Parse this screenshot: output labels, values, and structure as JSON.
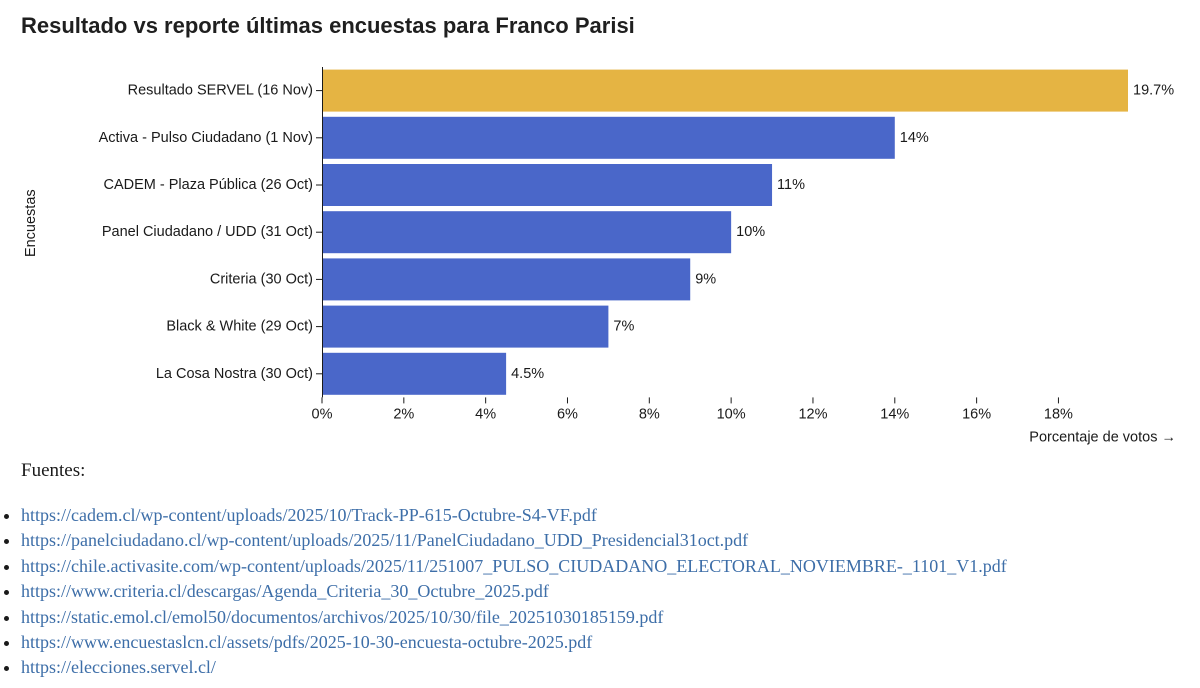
{
  "title": "Resultado vs reporte últimas encuestas para Franco Parisi",
  "chart_data": {
    "type": "bar",
    "orientation": "horizontal",
    "categories": [
      "Resultado SERVEL (16 Nov)",
      "Activa - Pulso Ciudadano (1 Nov)",
      "CADEM - Plaza Pública (26 Oct)",
      "Panel Ciudadano / UDD (31 Oct)",
      "Criteria (30 Oct)",
      "Black & White (29 Oct)",
      "La Cosa Nostra (30 Oct)"
    ],
    "values": [
      19.7,
      14,
      11,
      10,
      9,
      7,
      4.5
    ],
    "value_labels": [
      "19.7%",
      "14%",
      "11%",
      "10%",
      "9%",
      "7%",
      "4.5%"
    ],
    "bar_colors": [
      "#e5b443",
      "#4a67c9",
      "#4a67c9",
      "#4a67c9",
      "#4a67c9",
      "#4a67c9",
      "#4a67c9"
    ],
    "xlabel": "Porcentaje de votos →",
    "ylabel": "Encuestas",
    "xlim": [
      0,
      19.7
    ],
    "xticks": [
      0,
      2,
      4,
      6,
      8,
      10,
      12,
      14,
      16,
      18
    ],
    "xtick_labels": [
      "0%",
      "2%",
      "4%",
      "6%",
      "8%",
      "10%",
      "12%",
      "14%",
      "16%",
      "18%"
    ],
    "grid": false,
    "legend": "none"
  },
  "sources": {
    "heading": "Fuentes:",
    "links": [
      "https://cadem.cl/wp-content/uploads/2025/10/Track-PP-615-Octubre-S4-VF.pdf",
      "https://panelciudadano.cl/wp-content/uploads/2025/11/PanelCiudadano_UDD_Presidencial31oct.pdf",
      "https://chile.activasite.com/wp-content/uploads/2025/11/251007_PULSO_CIUDADANO_ELECTORAL_NOVIEMBRE-_1101_V1.pdf",
      "https://www.criteria.cl/descargas/Agenda_Criteria_30_Octubre_2025.pdf",
      "https://static.emol.cl/emol50/documentos/archivos/2025/10/30/file_20251030185159.pdf",
      "https://www.encuestaslcn.cl/assets/pdfs/2025-10-30-encuesta-octubre-2025.pdf",
      "https://elecciones.servel.cl/"
    ]
  }
}
